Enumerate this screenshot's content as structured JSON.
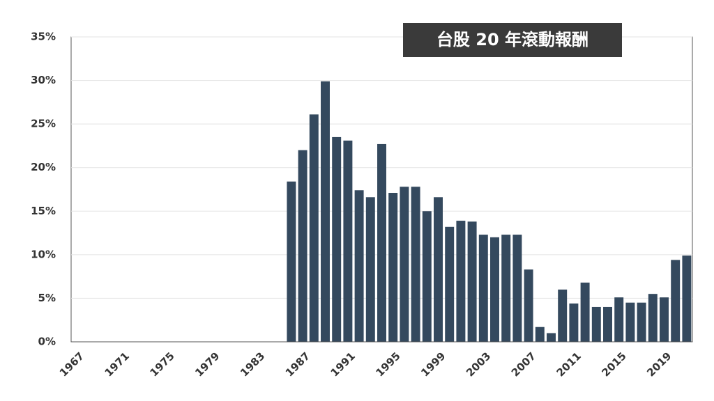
{
  "chart_data": {
    "type": "bar",
    "title": "台股 20 年滾動報酬",
    "categories": [
      "1967",
      null,
      null,
      null,
      "1971",
      null,
      null,
      null,
      "1975",
      null,
      null,
      null,
      "1979",
      null,
      null,
      null,
      "1983",
      null,
      null,
      null,
      "1987",
      null,
      null,
      null,
      "1991",
      null,
      null,
      null,
      "1995",
      null,
      null,
      null,
      "1999",
      null,
      null,
      null,
      "2003",
      null,
      null,
      null,
      "2007",
      null,
      null,
      null,
      "2011",
      null,
      null,
      null,
      "2015",
      null,
      null,
      null,
      "2019",
      null,
      null
    ],
    "values": [
      null,
      null,
      null,
      null,
      null,
      null,
      null,
      null,
      null,
      null,
      null,
      null,
      null,
      null,
      null,
      null,
      null,
      null,
      null,
      18.4,
      22.0,
      26.1,
      29.9,
      23.5,
      23.1,
      17.4,
      16.6,
      22.7,
      17.1,
      17.8,
      17.8,
      15.0,
      16.6,
      13.2,
      13.9,
      13.8,
      12.3,
      12.0,
      12.3,
      12.3,
      8.3,
      1.7,
      1.0,
      6.0,
      4.4,
      6.8,
      4.0,
      4.0,
      5.1,
      4.5,
      4.5,
      5.5,
      5.1,
      9.4,
      9.9
    ],
    "color": "#34495e",
    "ylim": [
      0,
      35
    ],
    "yticks": [
      {
        "value": 0,
        "label": "0%"
      },
      {
        "value": 5,
        "label": "5%"
      },
      {
        "value": 10,
        "label": "10%"
      },
      {
        "value": 15,
        "label": "15%"
      },
      {
        "value": 20,
        "label": "20%"
      },
      {
        "value": 25,
        "label": "25%"
      },
      {
        "value": 30,
        "label": "30%"
      },
      {
        "value": 35,
        "label": "35%"
      }
    ],
    "grid": true
  }
}
